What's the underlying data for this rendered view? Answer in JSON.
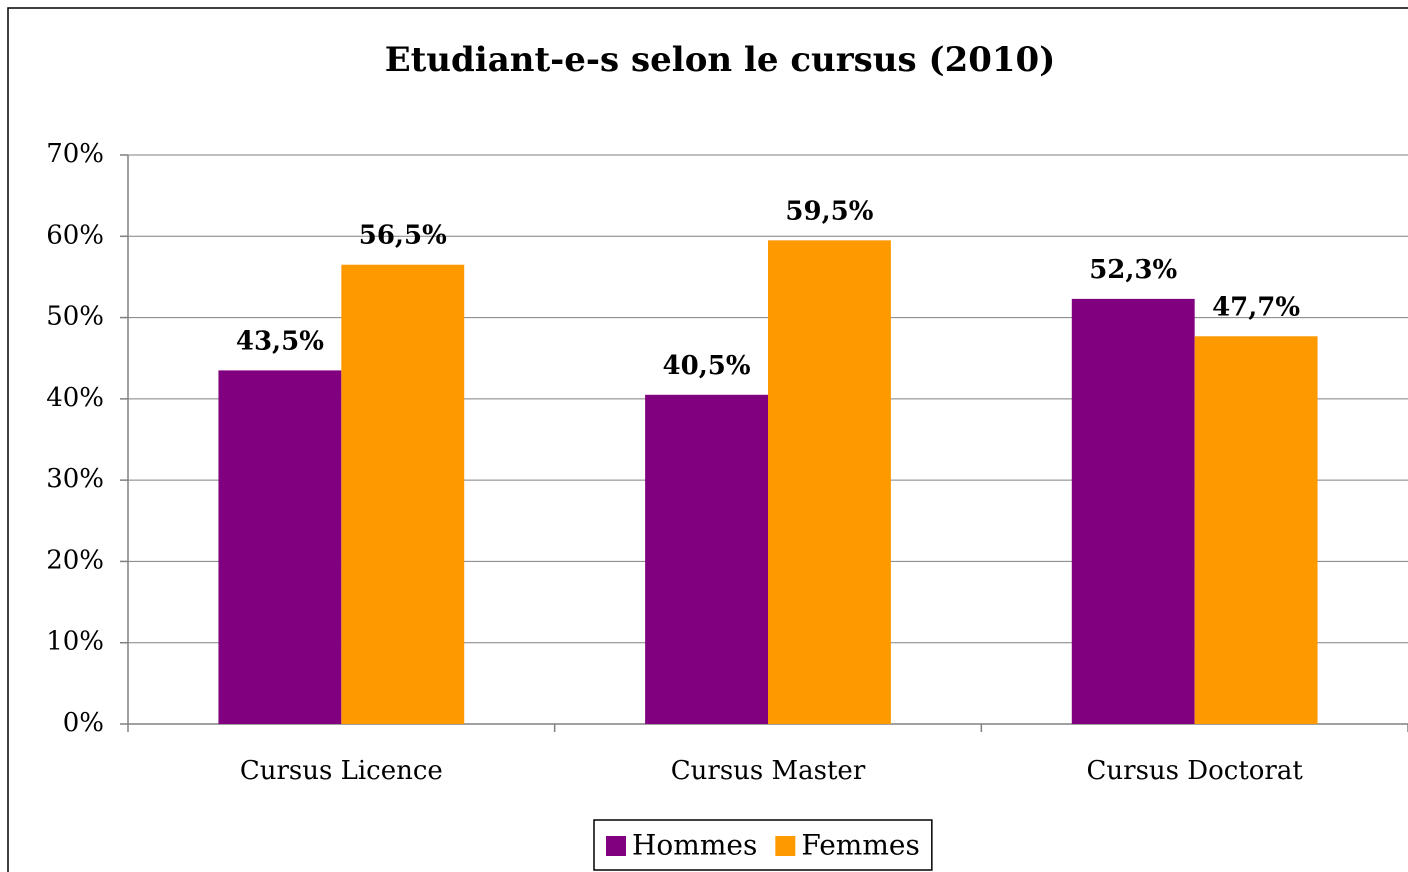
{
  "chart_data": {
    "type": "bar",
    "title": "Etudiant-e-s selon le cursus (2010)",
    "categories": [
      "Cursus Licence",
      "Cursus Master",
      "Cursus Doctorat"
    ],
    "series": [
      {
        "name": "Hommes",
        "color": "#800080",
        "values": [
          43.5,
          40.5,
          52.3
        ],
        "value_labels": [
          "43,5%",
          "40,5%",
          "52,3%"
        ]
      },
      {
        "name": "Femmes",
        "color": "#ff9900",
        "values": [
          56.5,
          59.5,
          47.7
        ],
        "value_labels": [
          "56,5%",
          "59,5%",
          "47,7%"
        ]
      }
    ],
    "ylim": [
      0,
      70
    ],
    "yticks": [
      {
        "value": 0,
        "label": "0%"
      },
      {
        "value": 10,
        "label": "10%"
      },
      {
        "value": 20,
        "label": "20%"
      },
      {
        "value": 30,
        "label": "30%"
      },
      {
        "value": 40,
        "label": "40%"
      },
      {
        "value": 50,
        "label": "50%"
      },
      {
        "value": 60,
        "label": "60%"
      },
      {
        "value": 70,
        "label": "70%"
      }
    ],
    "grid": true,
    "legend": "bottom"
  }
}
